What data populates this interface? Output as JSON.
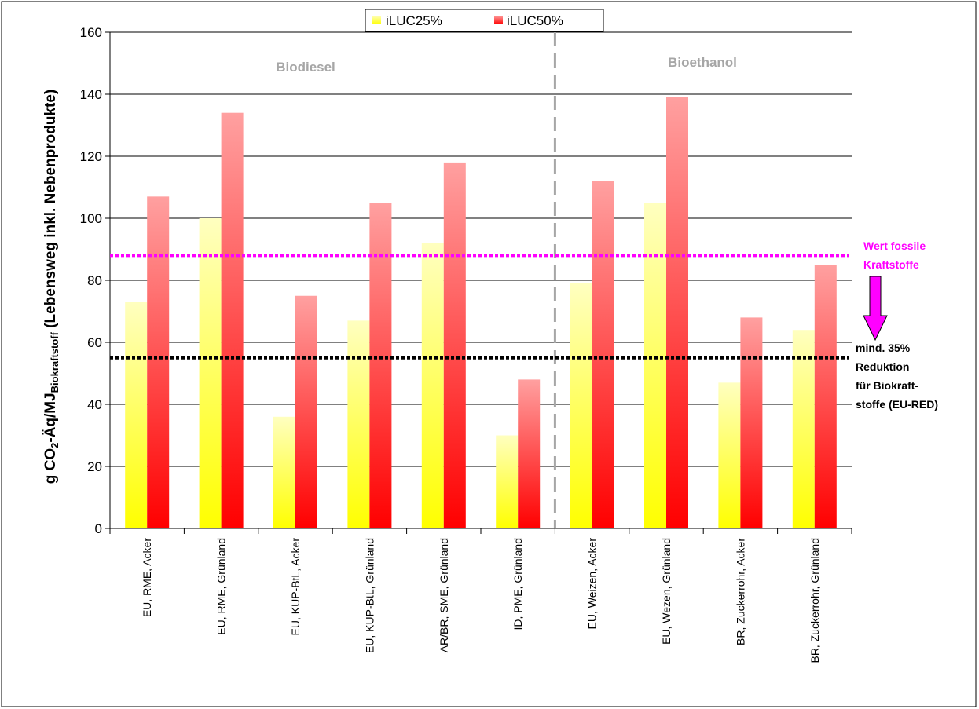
{
  "chart_data": {
    "type": "bar",
    "ylabel": {
      "pre": "g CO",
      "sub2": "2",
      "mid": "-Äq/MJ",
      "subBio": "Biokraftstoff",
      "post": " (Lebensweg inkl. Nebenprodukte)"
    },
    "ylim": [
      0,
      160
    ],
    "yticks": [
      0,
      20,
      40,
      60,
      80,
      100,
      120,
      140,
      160
    ],
    "grid": true,
    "legend_position": "top-center",
    "categories": [
      "EU, RME, Acker",
      "EU, RME, Grünland",
      "EU, KUP-BtL, Acker",
      "EU, KUP-BtL, Grünland",
      "AR/BR, SME, Grünland",
      "ID, PME, Grünland",
      "EU, Weizen, Acker",
      "EU, Wezen, Grünland",
      "BR, Zuckerrohr, Acker",
      "BR, Zuckerrohr, Grünland"
    ],
    "series": [
      {
        "name": "iLUC25%",
        "values": [
          73,
          100,
          36,
          67,
          92,
          30,
          79,
          105,
          47,
          64
        ],
        "color_top": "#ffffc0",
        "color_bottom": "#ffff00"
      },
      {
        "name": "iLUC50%",
        "values": [
          107,
          134,
          75,
          105,
          118,
          48,
          112,
          139,
          68,
          85
        ],
        "color_top": "#ffa0a0",
        "color_bottom": "#ff0000"
      }
    ],
    "groups": [
      {
        "label": "Biodiesel"
      },
      {
        "label": "Bioethanol"
      }
    ],
    "group_divider_after_index": 5,
    "reference_lines": [
      {
        "value": 88,
        "color": "#ff00ff",
        "label_lines": [
          "Wert fossile",
          "Kraftstoffe"
        ]
      },
      {
        "value": 55,
        "color": "#000000",
        "label_lines": [
          "mind. 35%",
          "Reduktion",
          "für Biokraft-",
          "stoffe (EU-RED)"
        ]
      }
    ],
    "arrow_color": "#ff00ff"
  }
}
